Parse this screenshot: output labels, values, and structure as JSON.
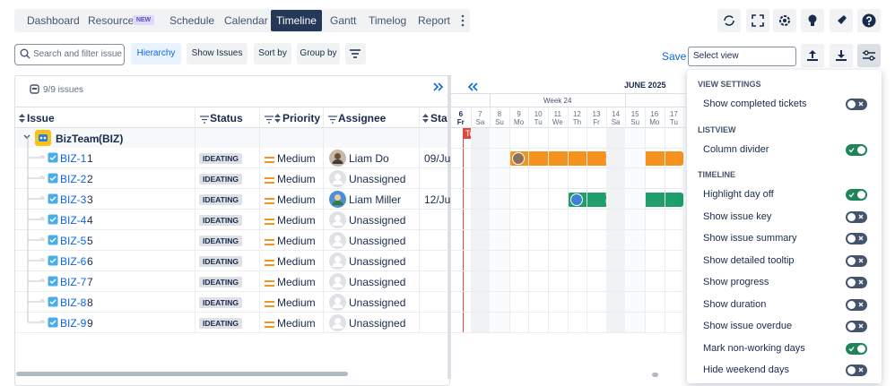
{
  "nav": {
    "tabs": [
      "Dashboard",
      "Resource",
      "Schedule",
      "Calendar",
      "Timeline",
      "Gantt",
      "Timelog",
      "Report"
    ],
    "badge": "NEW",
    "active": "Timeline"
  },
  "toolbar": {
    "search_placeholder": "Search and filter issue",
    "buttons": [
      "Hierarchy",
      "Show Issues",
      "Sort by",
      "Group by"
    ],
    "save": "Save",
    "view_placeholder": "Select view"
  },
  "list": {
    "count": "9/9 issues",
    "columns": [
      "Issue",
      "Status",
      "Priority",
      "Assignee",
      "Sta"
    ],
    "group": "BizTeam",
    "group_key": "(BIZ)",
    "rows": [
      {
        "key": "BIZ-1",
        "summary": "1",
        "status": "IDEATING",
        "priority": "Medium",
        "assignee": "Liam Do",
        "start": "09/Ju"
      },
      {
        "key": "BIZ-2",
        "summary": "2",
        "status": "IDEATING",
        "priority": "Medium",
        "assignee": "Unassigned"
      },
      {
        "key": "BIZ-3",
        "summary": "3",
        "status": "IDEATING",
        "priority": "Medium",
        "assignee": "Liam Miller",
        "start": "12/Ju"
      },
      {
        "key": "BIZ-4",
        "summary": "4",
        "status": "IDEATING",
        "priority": "Medium",
        "assignee": "Unassigned"
      },
      {
        "key": "BIZ-5",
        "summary": "5",
        "status": "IDEATING",
        "priority": "Medium",
        "assignee": "Unassigned"
      },
      {
        "key": "BIZ-6",
        "summary": "6",
        "status": "IDEATING",
        "priority": "Medium",
        "assignee": "Unassigned"
      },
      {
        "key": "BIZ-7",
        "summary": "7",
        "status": "IDEATING",
        "priority": "Medium",
        "assignee": "Unassigned"
      },
      {
        "key": "BIZ-8",
        "summary": "8",
        "status": "IDEATING",
        "priority": "Medium",
        "assignee": "Unassigned"
      },
      {
        "key": "BIZ-9",
        "summary": "9",
        "status": "IDEATING",
        "priority": "Medium",
        "assignee": "Unassigned"
      }
    ]
  },
  "timeline": {
    "month": "JUNE 2025",
    "week": "Week 24",
    "today": "Today",
    "days": [
      {
        "day": "6",
        "weekday": "Fr"
      },
      {
        "day": "7",
        "weekday": "Sa"
      },
      {
        "day": "8",
        "weekday": "Su"
      },
      {
        "day": "9",
        "weekday": "Mo"
      },
      {
        "day": "10",
        "weekday": "Tu"
      },
      {
        "day": "11",
        "weekday": "We"
      },
      {
        "day": "12",
        "weekday": "Th"
      },
      {
        "day": "13",
        "weekday": "Fr"
      },
      {
        "day": "14",
        "weekday": "Sa"
      },
      {
        "day": "15",
        "weekday": "Su"
      },
      {
        "day": "16",
        "weekday": "Mo"
      },
      {
        "day": "17",
        "weekday": "Tu"
      }
    ]
  },
  "settings": {
    "sections": [
      {
        "title": "VIEW SETTINGS",
        "items": [
          {
            "label": "Show completed tickets",
            "on": false
          }
        ]
      },
      {
        "title": "LISTVIEW",
        "items": [
          {
            "label": "Column divider",
            "on": true
          }
        ]
      },
      {
        "title": "TIMELINE",
        "items": [
          {
            "label": "Highlight day off",
            "on": true
          },
          {
            "label": "Show issue key",
            "on": false
          },
          {
            "label": "Show issue summary",
            "on": false
          },
          {
            "label": "Show detailed tooltip",
            "on": false
          },
          {
            "label": "Show progress",
            "on": false
          },
          {
            "label": "Show duration",
            "on": false
          },
          {
            "label": "Show issue overdue",
            "on": false
          },
          {
            "label": "Mark non-working days",
            "on": true
          },
          {
            "label": "Hide weekend days",
            "on": false
          }
        ]
      }
    ]
  }
}
